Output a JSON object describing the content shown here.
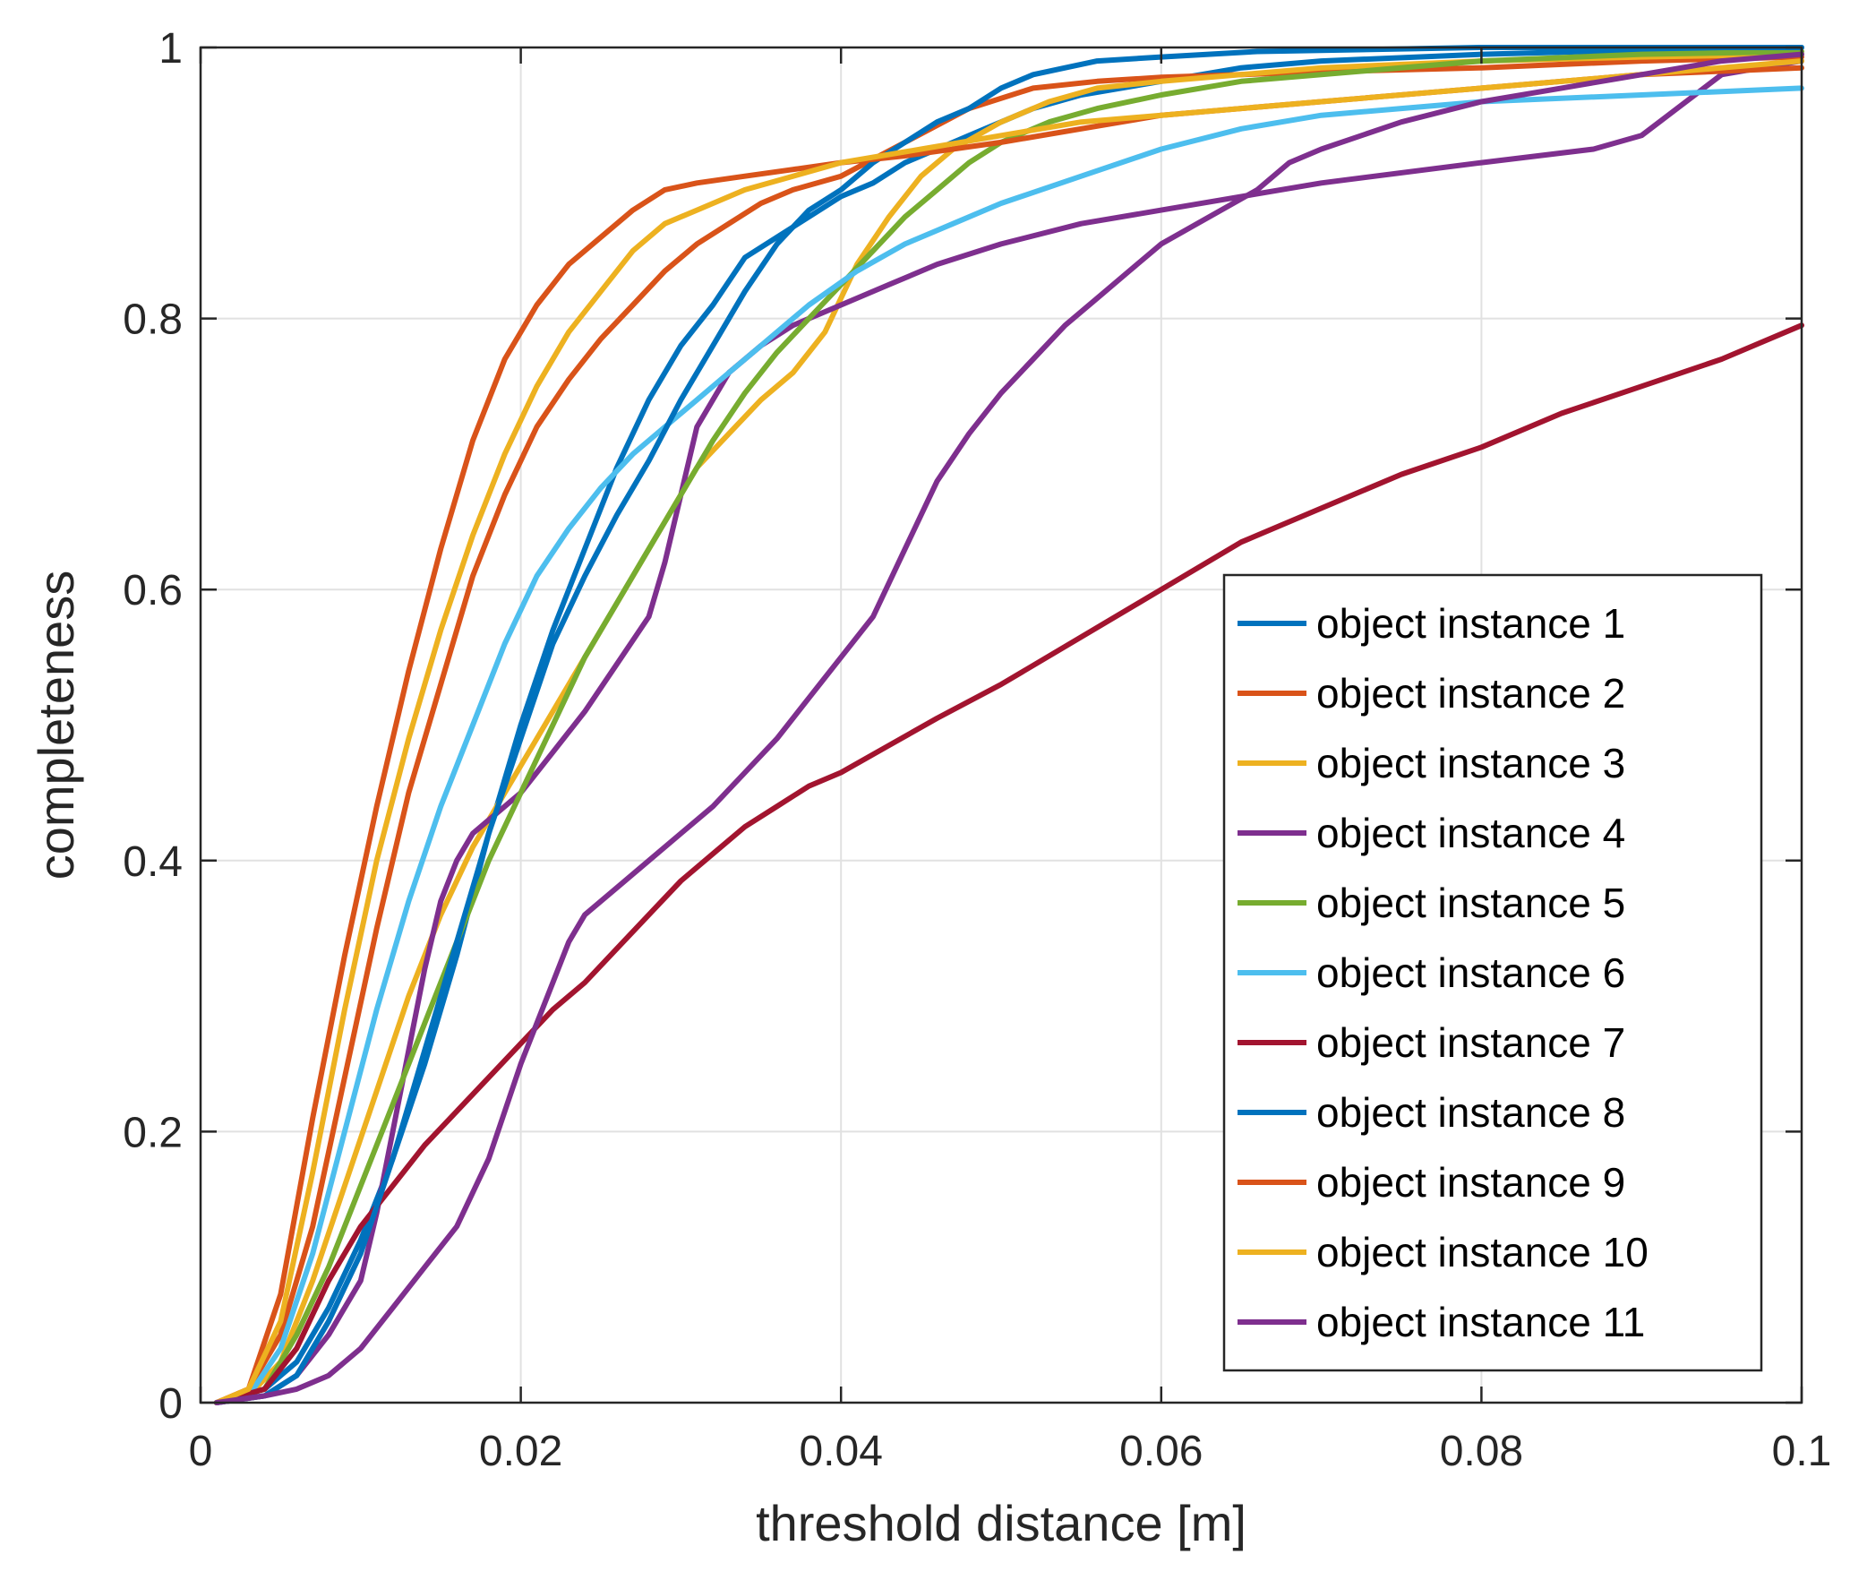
{
  "chart_data": {
    "type": "line",
    "xlabel": "threshold distance [m]",
    "ylabel": "completeness",
    "xlim": [
      0,
      0.1
    ],
    "ylim": [
      0,
      1
    ],
    "grid": true,
    "legend_position": "lower-right",
    "x_ticks": [
      {
        "value": 0,
        "label": "0"
      },
      {
        "value": 0.02,
        "label": "0.02"
      },
      {
        "value": 0.04,
        "label": "0.04"
      },
      {
        "value": 0.06,
        "label": "0.06"
      },
      {
        "value": 0.08,
        "label": "0.08"
      },
      {
        "value": 0.1,
        "label": "0.1"
      }
    ],
    "y_ticks": [
      {
        "value": 0,
        "label": "0"
      },
      {
        "value": 0.2,
        "label": "0.2"
      },
      {
        "value": 0.4,
        "label": "0.4"
      },
      {
        "value": 0.6,
        "label": "0.6"
      },
      {
        "value": 0.8,
        "label": "0.8"
      },
      {
        "value": 1,
        "label": "1"
      }
    ],
    "series": [
      {
        "name": "object instance 1",
        "color": "#0072bd",
        "x": [
          0.001,
          0.004,
          0.006,
          0.008,
          0.01,
          0.012,
          0.014,
          0.016,
          0.018,
          0.02,
          0.022,
          0.024,
          0.026,
          0.028,
          0.03,
          0.032,
          0.034,
          0.036,
          0.038,
          0.04,
          0.042,
          0.044,
          0.046,
          0.048,
          0.05,
          0.052,
          0.055,
          0.06,
          0.065,
          0.07,
          0.08,
          0.09,
          0.1
        ],
        "y": [
          0.0,
          0.01,
          0.03,
          0.07,
          0.12,
          0.18,
          0.25,
          0.33,
          0.42,
          0.5,
          0.57,
          0.63,
          0.69,
          0.74,
          0.78,
          0.81,
          0.845,
          0.86,
          0.875,
          0.89,
          0.9,
          0.915,
          0.925,
          0.935,
          0.945,
          0.955,
          0.965,
          0.975,
          0.985,
          0.99,
          0.995,
          0.998,
          1.0
        ]
      },
      {
        "name": "object instance 2",
        "color": "#d95319",
        "x": [
          0.001,
          0.003,
          0.005,
          0.007,
          0.009,
          0.011,
          0.013,
          0.015,
          0.017,
          0.019,
          0.021,
          0.023,
          0.025,
          0.027,
          0.029,
          0.031,
          0.033,
          0.035,
          0.037,
          0.04,
          0.044,
          0.048,
          0.052,
          0.056,
          0.06,
          0.065,
          0.07,
          0.08,
          0.09,
          0.1
        ],
        "y": [
          0.0,
          0.01,
          0.05,
          0.13,
          0.24,
          0.35,
          0.45,
          0.53,
          0.61,
          0.67,
          0.72,
          0.755,
          0.785,
          0.81,
          0.835,
          0.855,
          0.87,
          0.885,
          0.895,
          0.905,
          0.93,
          0.955,
          0.97,
          0.975,
          0.978,
          0.98,
          0.982,
          0.985,
          0.99,
          0.993
        ]
      },
      {
        "name": "object instance 3",
        "color": "#edb120",
        "x": [
          0.001,
          0.003,
          0.005,
          0.007,
          0.009,
          0.011,
          0.013,
          0.015,
          0.017,
          0.019,
          0.021,
          0.023,
          0.025,
          0.027,
          0.029,
          0.031,
          0.033,
          0.035,
          0.037,
          0.039,
          0.041,
          0.043,
          0.045,
          0.047,
          0.05,
          0.053,
          0.056,
          0.06,
          0.065,
          0.07,
          0.08,
          0.09,
          0.1
        ],
        "y": [
          0.0,
          0.005,
          0.03,
          0.09,
          0.16,
          0.23,
          0.3,
          0.36,
          0.41,
          0.45,
          0.49,
          0.53,
          0.57,
          0.61,
          0.65,
          0.69,
          0.715,
          0.74,
          0.76,
          0.79,
          0.84,
          0.875,
          0.905,
          0.925,
          0.945,
          0.96,
          0.97,
          0.975,
          0.98,
          0.985,
          0.99,
          0.993,
          0.995
        ]
      },
      {
        "name": "object instance 4",
        "color": "#7e2f8e",
        "x": [
          0.001,
          0.004,
          0.006,
          0.008,
          0.01,
          0.011,
          0.012,
          0.013,
          0.014,
          0.015,
          0.016,
          0.017,
          0.018,
          0.019,
          0.02,
          0.022,
          0.024,
          0.026,
          0.028,
          0.029,
          0.03,
          0.031,
          0.033,
          0.035,
          0.037,
          0.04,
          0.043,
          0.046,
          0.05,
          0.055,
          0.06,
          0.065,
          0.07,
          0.08,
          0.087,
          0.09,
          0.095,
          0.1
        ],
        "y": [
          0.0,
          0.005,
          0.02,
          0.05,
          0.09,
          0.14,
          0.2,
          0.26,
          0.32,
          0.37,
          0.4,
          0.42,
          0.43,
          0.44,
          0.45,
          0.48,
          0.51,
          0.545,
          0.58,
          0.62,
          0.67,
          0.72,
          0.76,
          0.78,
          0.795,
          0.81,
          0.825,
          0.84,
          0.855,
          0.87,
          0.88,
          0.89,
          0.9,
          0.915,
          0.925,
          0.935,
          0.98,
          0.99
        ]
      },
      {
        "name": "object instance 5",
        "color": "#77ac30",
        "x": [
          0.001,
          0.004,
          0.006,
          0.008,
          0.01,
          0.012,
          0.014,
          0.016,
          0.018,
          0.02,
          0.022,
          0.024,
          0.026,
          0.028,
          0.03,
          0.032,
          0.034,
          0.036,
          0.038,
          0.04,
          0.042,
          0.044,
          0.046,
          0.048,
          0.05,
          0.053,
          0.056,
          0.06,
          0.065,
          0.07,
          0.08,
          0.09,
          0.1
        ],
        "y": [
          0.0,
          0.01,
          0.05,
          0.1,
          0.16,
          0.22,
          0.28,
          0.34,
          0.4,
          0.45,
          0.5,
          0.55,
          0.59,
          0.63,
          0.67,
          0.71,
          0.745,
          0.775,
          0.8,
          0.825,
          0.85,
          0.875,
          0.895,
          0.915,
          0.93,
          0.945,
          0.955,
          0.965,
          0.975,
          0.98,
          0.99,
          0.995,
          0.997
        ]
      },
      {
        "name": "object instance 6",
        "color": "#4dbeee",
        "x": [
          0.001,
          0.003,
          0.005,
          0.007,
          0.009,
          0.011,
          0.013,
          0.015,
          0.017,
          0.019,
          0.021,
          0.023,
          0.025,
          0.027,
          0.029,
          0.031,
          0.033,
          0.035,
          0.038,
          0.041,
          0.044,
          0.047,
          0.05,
          0.055,
          0.06,
          0.065,
          0.07,
          0.075,
          0.08,
          0.09,
          0.1
        ],
        "y": [
          0.0,
          0.005,
          0.04,
          0.11,
          0.2,
          0.29,
          0.37,
          0.44,
          0.5,
          0.56,
          0.61,
          0.645,
          0.675,
          0.7,
          0.72,
          0.74,
          0.76,
          0.78,
          0.81,
          0.835,
          0.855,
          0.87,
          0.885,
          0.905,
          0.925,
          0.94,
          0.95,
          0.955,
          0.96,
          0.965,
          0.97
        ]
      },
      {
        "name": "object instance 7",
        "color": "#a2142f",
        "x": [
          0.001,
          0.004,
          0.006,
          0.008,
          0.01,
          0.012,
          0.014,
          0.016,
          0.018,
          0.02,
          0.022,
          0.024,
          0.026,
          0.028,
          0.03,
          0.032,
          0.034,
          0.036,
          0.038,
          0.04,
          0.043,
          0.046,
          0.05,
          0.055,
          0.06,
          0.065,
          0.07,
          0.075,
          0.08,
          0.085,
          0.09,
          0.095,
          0.1
        ],
        "y": [
          0.0,
          0.01,
          0.04,
          0.09,
          0.13,
          0.16,
          0.19,
          0.215,
          0.24,
          0.265,
          0.29,
          0.31,
          0.335,
          0.36,
          0.385,
          0.405,
          0.425,
          0.44,
          0.455,
          0.465,
          0.485,
          0.505,
          0.53,
          0.565,
          0.6,
          0.635,
          0.66,
          0.685,
          0.705,
          0.73,
          0.75,
          0.77,
          0.795
        ]
      },
      {
        "name": "object instance 8",
        "color": "#0072bd",
        "x": [
          0.001,
          0.004,
          0.006,
          0.008,
          0.01,
          0.012,
          0.014,
          0.016,
          0.018,
          0.02,
          0.022,
          0.024,
          0.026,
          0.028,
          0.03,
          0.032,
          0.034,
          0.036,
          0.038,
          0.04,
          0.042,
          0.044,
          0.046,
          0.048,
          0.05,
          0.052,
          0.054,
          0.056,
          0.06,
          0.066,
          0.08,
          0.1
        ],
        "y": [
          0.0,
          0.005,
          0.02,
          0.06,
          0.11,
          0.18,
          0.26,
          0.34,
          0.42,
          0.49,
          0.56,
          0.61,
          0.655,
          0.695,
          0.74,
          0.78,
          0.82,
          0.855,
          0.88,
          0.895,
          0.915,
          0.93,
          0.945,
          0.955,
          0.97,
          0.98,
          0.985,
          0.99,
          0.993,
          0.997,
          1.0,
          1.0
        ]
      },
      {
        "name": "object instance 9",
        "color": "#d95319",
        "x": [
          0.001,
          0.003,
          0.005,
          0.007,
          0.009,
          0.011,
          0.013,
          0.015,
          0.017,
          0.019,
          0.021,
          0.023,
          0.025,
          0.027,
          0.029,
          0.031,
          0.034,
          0.037,
          0.04,
          0.044,
          0.05,
          0.055,
          0.06,
          0.07,
          0.08,
          0.09,
          0.1
        ],
        "y": [
          0.0,
          0.01,
          0.08,
          0.21,
          0.33,
          0.44,
          0.54,
          0.63,
          0.71,
          0.77,
          0.81,
          0.84,
          0.86,
          0.88,
          0.895,
          0.9,
          0.905,
          0.91,
          0.915,
          0.92,
          0.93,
          0.94,
          0.95,
          0.96,
          0.97,
          0.98,
          0.985
        ]
      },
      {
        "name": "object instance 10",
        "color": "#edb120",
        "x": [
          0.001,
          0.003,
          0.005,
          0.007,
          0.009,
          0.011,
          0.013,
          0.015,
          0.017,
          0.019,
          0.021,
          0.023,
          0.025,
          0.027,
          0.029,
          0.031,
          0.034,
          0.037,
          0.04,
          0.045,
          0.05,
          0.055,
          0.06,
          0.07,
          0.08,
          0.09,
          0.1
        ],
        "y": [
          0.0,
          0.01,
          0.06,
          0.17,
          0.29,
          0.4,
          0.49,
          0.57,
          0.64,
          0.7,
          0.75,
          0.79,
          0.82,
          0.85,
          0.87,
          0.88,
          0.895,
          0.905,
          0.915,
          0.925,
          0.935,
          0.945,
          0.95,
          0.96,
          0.97,
          0.98,
          0.99
        ]
      },
      {
        "name": "object instance 11",
        "color": "#7e2f8e",
        "x": [
          0.001,
          0.004,
          0.006,
          0.008,
          0.01,
          0.012,
          0.014,
          0.016,
          0.018,
          0.02,
          0.021,
          0.022,
          0.023,
          0.024,
          0.026,
          0.028,
          0.03,
          0.032,
          0.034,
          0.036,
          0.038,
          0.04,
          0.042,
          0.044,
          0.046,
          0.048,
          0.05,
          0.052,
          0.054,
          0.056,
          0.058,
          0.06,
          0.063,
          0.066,
          0.068,
          0.07,
          0.075,
          0.08,
          0.085,
          0.09,
          0.095,
          0.1
        ],
        "y": [
          0.0,
          0.005,
          0.01,
          0.02,
          0.04,
          0.07,
          0.1,
          0.13,
          0.18,
          0.25,
          0.28,
          0.31,
          0.34,
          0.36,
          0.38,
          0.4,
          0.42,
          0.44,
          0.465,
          0.49,
          0.52,
          0.55,
          0.58,
          0.63,
          0.68,
          0.715,
          0.745,
          0.77,
          0.795,
          0.815,
          0.835,
          0.855,
          0.875,
          0.895,
          0.915,
          0.925,
          0.945,
          0.96,
          0.97,
          0.98,
          0.99,
          0.995
        ]
      }
    ]
  }
}
